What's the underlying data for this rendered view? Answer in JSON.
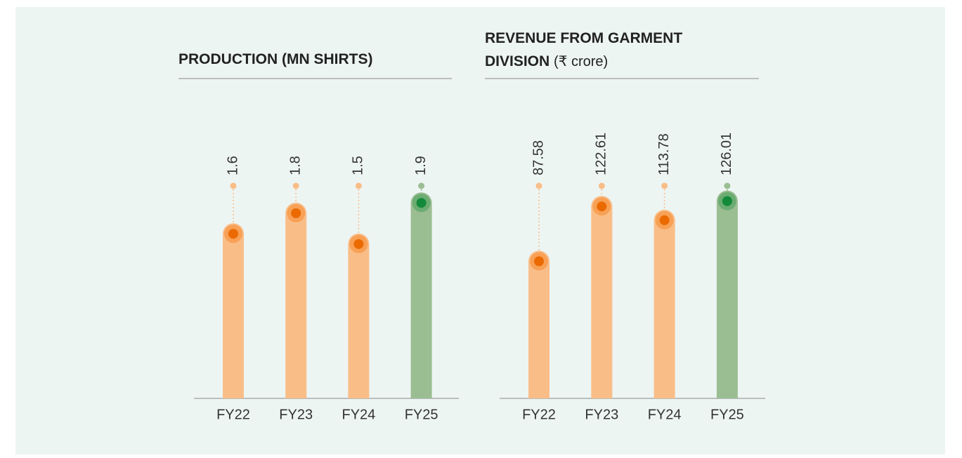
{
  "chart_data": [
    {
      "type": "bar",
      "title": "PRODUCTION (MN SHIRTS)",
      "categories": [
        "FY22",
        "FY23",
        "FY24",
        "FY25"
      ],
      "values": [
        1.6,
        1.8,
        1.5,
        1.9
      ],
      "colors": [
        "#f9bd88",
        "#f9bd88",
        "#f9bd88",
        "#9bbd92"
      ],
      "ylim": [
        0,
        2.1
      ]
    },
    {
      "type": "bar",
      "title": "REVENUE FROM GARMENT DIVISION",
      "unit": "(₹ crore)",
      "categories": [
        "FY22",
        "FY23",
        "FY24",
        "FY25"
      ],
      "values": [
        87.58,
        122.61,
        113.78,
        126.01
      ],
      "colors": [
        "#f9bd88",
        "#f9bd88",
        "#f9bd88",
        "#9bbd92"
      ],
      "ylim": [
        0,
        138
      ]
    }
  ]
}
